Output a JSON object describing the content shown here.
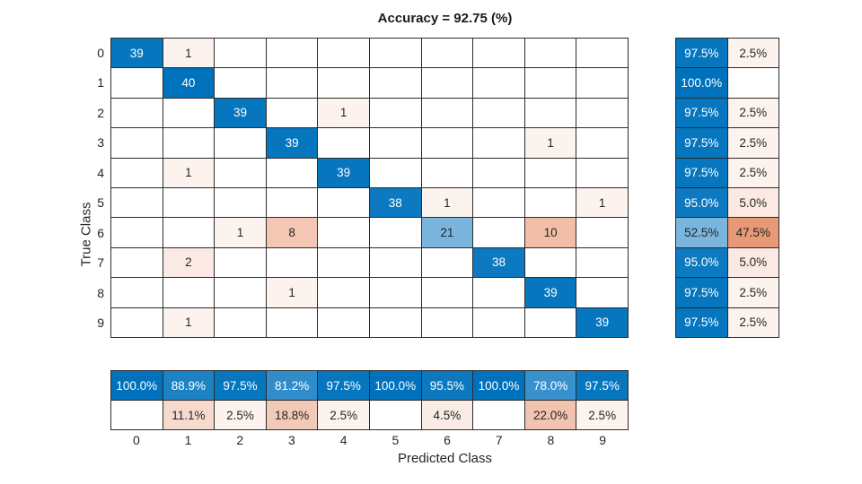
{
  "chart_data": {
    "type": "heatmap",
    "subtype": "confusion-matrix",
    "title": "Accuracy = 92.75 (%)",
    "xlabel": "Predicted Class",
    "ylabel": "True Class",
    "classes": [
      "0",
      "1",
      "2",
      "3",
      "4",
      "5",
      "6",
      "7",
      "8",
      "9"
    ],
    "matrix": [
      [
        39,
        1,
        0,
        0,
        0,
        0,
        0,
        0,
        0,
        0
      ],
      [
        0,
        40,
        0,
        0,
        0,
        0,
        0,
        0,
        0,
        0
      ],
      [
        0,
        0,
        39,
        0,
        1,
        0,
        0,
        0,
        0,
        0
      ],
      [
        0,
        0,
        0,
        39,
        0,
        0,
        0,
        0,
        1,
        0
      ],
      [
        0,
        1,
        0,
        0,
        39,
        0,
        0,
        0,
        0,
        0
      ],
      [
        0,
        0,
        0,
        0,
        0,
        38,
        1,
        0,
        0,
        1
      ],
      [
        0,
        0,
        1,
        8,
        0,
        0,
        21,
        0,
        10,
        0
      ],
      [
        0,
        2,
        0,
        0,
        0,
        0,
        0,
        38,
        0,
        0
      ],
      [
        0,
        0,
        0,
        1,
        0,
        0,
        0,
        0,
        39,
        0
      ],
      [
        0,
        1,
        0,
        0,
        0,
        0,
        0,
        0,
        0,
        39
      ]
    ],
    "max_count": 40,
    "row_summary": {
      "recall_percent": [
        97.5,
        100.0,
        97.5,
        97.5,
        97.5,
        95.0,
        52.5,
        95.0,
        97.5,
        97.5
      ],
      "miss_rate_percent": [
        2.5,
        null,
        2.5,
        2.5,
        2.5,
        5.0,
        47.5,
        5.0,
        2.5,
        2.5
      ]
    },
    "col_summary": {
      "precision_percent": [
        100.0,
        88.9,
        97.5,
        81.2,
        97.5,
        100.0,
        95.5,
        100.0,
        78.0,
        97.5
      ],
      "fdr_percent": [
        null,
        11.1,
        2.5,
        18.8,
        2.5,
        null,
        4.5,
        null,
        22.0,
        2.5
      ]
    },
    "colors": {
      "diagonal_blue": "#0072BD",
      "off_diagonal_orange": "#D95319",
      "grid_line": "#2B2B2B",
      "text_dark": "#262626",
      "text_light": "#FFFFFF",
      "background": "#FFFFFF"
    },
    "layout": {
      "legend": "none",
      "grid": "on",
      "row_summary_position": "right",
      "col_summary_position": "bottom"
    }
  }
}
